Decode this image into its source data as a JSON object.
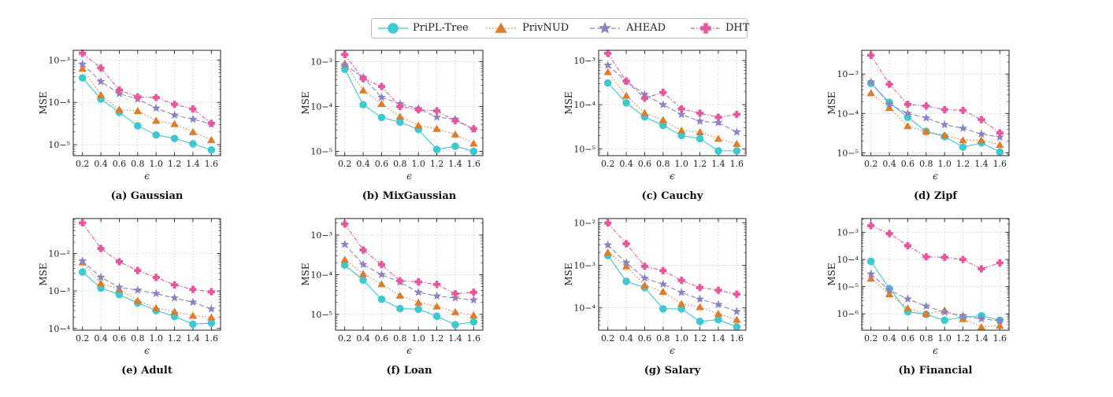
{
  "legend": [
    {
      "name": "PriPL-Tree",
      "color": "#3cc9cf",
      "marker": "circle",
      "dash": ""
    },
    {
      "name": "PrivNUD",
      "color": "#e07b2a",
      "marker": "triangle",
      "dash": "1.5,2.5"
    },
    {
      "name": "AHEAD",
      "color": "#8c84c2",
      "marker": "star",
      "dash": "6,3"
    },
    {
      "name": "DHT",
      "color": "#e8559a",
      "marker": "plus",
      "dash": "5,2,1.5,2"
    }
  ],
  "chart_data": [
    {
      "type": "line",
      "caption": "(a) Gaussian",
      "xlabel": "ϵ",
      "ylabel": "MSE",
      "yscale": "log",
      "x": [
        0.2,
        0.4,
        0.6,
        0.8,
        1.0,
        1.2,
        1.4,
        1.6
      ],
      "xticks": [
        "0.2",
        "0.4",
        "0.6",
        "0.8",
        "1.0",
        "1.2",
        "1.4",
        "1.6"
      ],
      "ylim": [
        5.5e-06,
        0.0017
      ],
      "yticks": [
        -5,
        -4,
        -3
      ],
      "series": [
        {
          "name": "PriPL-Tree",
          "values": [
            0.00038,
            0.00012,
            5.8e-05,
            2.8e-05,
            1.7e-05,
            1.4e-05,
            1.05e-05,
            7.5e-06
          ]
        },
        {
          "name": "PrivNUD",
          "values": [
            0.00063,
            0.00015,
            6.8e-05,
            6.3e-05,
            3.7e-05,
            3.1e-05,
            2e-05,
            1.3e-05
          ]
        },
        {
          "name": "AHEAD",
          "values": [
            0.0008,
            0.00031,
            0.00016,
            0.00012,
            7.3e-05,
            5e-05,
            4e-05,
            3.1e-05
          ]
        },
        {
          "name": "DHT",
          "values": [
            0.00145,
            0.00065,
            0.000195,
            0.000135,
            0.00013,
            9e-05,
            7e-05,
            3.2e-05
          ]
        }
      ]
    },
    {
      "type": "line",
      "caption": "(b) MixGaussian",
      "xlabel": "ϵ",
      "ylabel": "MSE",
      "yscale": "log",
      "x": [
        0.2,
        0.4,
        0.6,
        0.8,
        1.0,
        1.2,
        1.4,
        1.6
      ],
      "xticks": [
        "0.2",
        "0.4",
        "0.6",
        "0.8",
        "1.0",
        "1.2",
        "1.4",
        "1.6"
      ],
      "ylim": [
        8e-06,
        0.0018
      ],
      "yticks": [
        -5,
        -4,
        -3
      ],
      "series": [
        {
          "name": "PriPL-Tree",
          "values": [
            0.00068,
            0.00011,
            5.7e-05,
            4.5e-05,
            3.1e-05,
            1.1e-05,
            1.3e-05,
            1e-05
          ]
        },
        {
          "name": "PrivNUD",
          "values": [
            0.00092,
            0.00023,
            0.000115,
            6e-05,
            3.8e-05,
            3.2e-05,
            2.4e-05,
            1.5e-05
          ]
        },
        {
          "name": "AHEAD",
          "values": [
            0.00085,
            0.00045,
            0.00016,
            0.000115,
            9e-05,
            5.8e-05,
            5.2e-05,
            3.1e-05
          ]
        },
        {
          "name": "DHT",
          "values": [
            0.00145,
            0.00042,
            0.00028,
            0.0001,
            8.5e-05,
            8e-05,
            4.8e-05,
            3.2e-05
          ]
        }
      ]
    },
    {
      "type": "line",
      "caption": "(c) Cauchy",
      "xlabel": "ϵ",
      "ylabel": "MSE",
      "yscale": "log",
      "x": [
        0.2,
        0.4,
        0.6,
        0.8,
        1.0,
        1.2,
        1.4,
        1.6
      ],
      "xticks": [
        "0.2",
        "0.4",
        "0.6",
        "0.8",
        "1.0",
        "1.2",
        "1.4",
        "1.6"
      ],
      "ylim": [
        7e-06,
        0.0017
      ],
      "yticks": [
        -5,
        -4,
        -3
      ],
      "series": [
        {
          "name": "PriPL-Tree",
          "values": [
            0.00031,
            0.00011,
            5.3e-05,
            3.4e-05,
            2e-05,
            1.7e-05,
            9e-06,
            9e-06
          ]
        },
        {
          "name": "PrivNUD",
          "values": [
            0.00055,
            0.00016,
            6.5e-05,
            4.5e-05,
            2.6e-05,
            2.4e-05,
            1.7e-05,
            1.3e-05
          ]
        },
        {
          "name": "AHEAD",
          "values": [
            0.00078,
            0.00034,
            0.00017,
            0.0001,
            6e-05,
            4.2e-05,
            3.9e-05,
            2.4e-05
          ]
        },
        {
          "name": "DHT",
          "values": [
            0.00145,
            0.00034,
            0.00014,
            0.00019,
            8e-05,
            6.4e-05,
            5.2e-05,
            6e-05
          ]
        }
      ]
    },
    {
      "type": "line",
      "caption": "(d) Zipf",
      "xlabel": "ϵ",
      "ylabel": "MSE",
      "yscale": "log",
      "x": [
        0.2,
        0.4,
        0.6,
        0.8,
        1.0,
        1.2,
        1.4,
        1.6
      ],
      "xticks": [
        "0.2",
        "0.4",
        "0.6",
        "0.8",
        "1.0",
        "1.2",
        "1.4",
        "1.6"
      ],
      "ylim": [
        8.5e-06,
        0.004
      ],
      "yticks": [
        -5,
        -4,
        -3
      ],
      "series": [
        {
          "name": "PriPL-Tree",
          "values": [
            0.00058,
            0.00019,
            8e-05,
            3.5e-05,
            2.6e-05,
            1.4e-05,
            1.8e-05,
            1.05e-05
          ]
        },
        {
          "name": "PrivNUD",
          "values": [
            0.00033,
            0.00014,
            4.8e-05,
            3.5e-05,
            2.8e-05,
            2.1e-05,
            2.1e-05,
            1.6e-05
          ]
        },
        {
          "name": "AHEAD",
          "values": [
            0.00063,
            0.00017,
            0.0001,
            7.7e-05,
            5.2e-05,
            4.2e-05,
            3e-05,
            2.5e-05
          ]
        },
        {
          "name": "DHT",
          "values": [
            0.003,
            0.00055,
            0.00017,
            0.000155,
            0.000125,
            0.00012,
            7e-05,
            3.2e-05
          ]
        }
      ]
    },
    {
      "type": "line",
      "caption": "(e) Adult",
      "xlabel": "ϵ",
      "ylabel": "MSE",
      "yscale": "log",
      "x": [
        0.2,
        0.4,
        0.6,
        0.8,
        1.0,
        1.2,
        1.4,
        1.6
      ],
      "xticks": [
        "0.2",
        "0.4",
        "0.6",
        "0.8",
        "1.0",
        "1.2",
        "1.4",
        "1.6"
      ],
      "ylim": [
        9e-05,
        0.085
      ],
      "yticks": [
        -4,
        -3,
        -2
      ],
      "series": [
        {
          "name": "PriPL-Tree",
          "values": [
            0.0032,
            0.0012,
            0.0008,
            0.00048,
            0.0003,
            0.00021,
            0.00013,
            0.00014
          ]
        },
        {
          "name": "PrivNUD",
          "values": [
            0.0058,
            0.0016,
            0.0011,
            0.00055,
            0.00035,
            0.00028,
            0.00022,
            0.0002
          ]
        },
        {
          "name": "AHEAD",
          "values": [
            0.0063,
            0.0023,
            0.00125,
            0.00105,
            0.00085,
            0.00065,
            0.0005,
            0.00033
          ]
        },
        {
          "name": "DHT",
          "values": [
            0.065,
            0.0135,
            0.006,
            0.0035,
            0.0023,
            0.00145,
            0.0011,
            0.00095
          ]
        }
      ]
    },
    {
      "type": "line",
      "caption": "(f) Loan",
      "xlabel": "ϵ",
      "ylabel": "MSE",
      "yscale": "log",
      "x": [
        0.2,
        0.4,
        0.6,
        0.8,
        1.0,
        1.2,
        1.4,
        1.6
      ],
      "xticks": [
        "0.2",
        "0.4",
        "0.6",
        "0.8",
        "1.0",
        "1.2",
        "1.4",
        "1.6"
      ],
      "ylim": [
        4e-06,
        0.0026
      ],
      "yticks": [
        -5,
        -4,
        -3
      ],
      "series": [
        {
          "name": "PriPL-Tree",
          "values": [
            0.000175,
            7.3e-05,
            2.4e-05,
            1.4e-05,
            1.35e-05,
            9e-06,
            5.5e-06,
            6.5e-06
          ]
        },
        {
          "name": "PrivNUD",
          "values": [
            0.00024,
            0.000105,
            5.8e-05,
            3e-05,
            2e-05,
            1.6e-05,
            1.15e-05,
            9.5e-06
          ]
        },
        {
          "name": "AHEAD",
          "values": [
            0.00058,
            0.00018,
            0.0001,
            6.5e-05,
            3.6e-05,
            2.9e-05,
            2.6e-05,
            2.3e-05
          ]
        },
        {
          "name": "DHT",
          "values": [
            0.0019,
            0.00042,
            0.00018,
            7e-05,
            6.6e-05,
            5.7e-05,
            3.3e-05,
            3.6e-05
          ]
        }
      ]
    },
    {
      "type": "line",
      "caption": "(g) Salary",
      "xlabel": "ϵ",
      "ylabel": "MSE",
      "yscale": "log",
      "x": [
        0.2,
        0.4,
        0.6,
        0.8,
        1.0,
        1.2,
        1.4,
        1.6
      ],
      "xticks": [
        "0.2",
        "0.4",
        "0.6",
        "0.8",
        "1.0",
        "1.2",
        "1.4",
        "1.6"
      ],
      "ylim": [
        3e-05,
        0.0125
      ],
      "yticks": [
        -4,
        -3,
        -2
      ],
      "series": [
        {
          "name": "PriPL-Tree",
          "values": [
            0.0017,
            0.00042,
            0.0003,
            9.5e-05,
            9.5e-05,
            4.8e-05,
            5.3e-05,
            3.6e-05
          ]
        },
        {
          "name": "PrivNUD",
          "values": [
            0.002,
            0.00095,
            0.00034,
            0.00024,
            0.000125,
            0.000105,
            7.3e-05,
            5.3e-05
          ]
        },
        {
          "name": "AHEAD",
          "values": [
            0.003,
            0.00115,
            0.0005,
            0.00036,
            0.00023,
            0.00016,
            0.00012,
            8.2e-05
          ]
        },
        {
          "name": "DHT",
          "values": [
            0.0098,
            0.0032,
            0.00095,
            0.00075,
            0.00044,
            0.0003,
            0.00026,
            0.00021
          ]
        }
      ]
    },
    {
      "type": "line",
      "caption": "(h) Financial",
      "xlabel": "ϵ",
      "ylabel": "MSE",
      "yscale": "log",
      "x": [
        0.2,
        0.4,
        0.6,
        0.8,
        1.0,
        1.2,
        1.4,
        1.6
      ],
      "xticks": [
        "0.2",
        "0.4",
        "0.6",
        "0.8",
        "1.0",
        "1.2",
        "1.4",
        "1.6"
      ],
      "ylim": [
        2.5e-07,
        0.0032
      ],
      "yticks": [
        -6,
        -5,
        -4,
        -3
      ],
      "series": [
        {
          "name": "PriPL-Tree",
          "values": [
            8.5e-05,
            8.5e-06,
            1.2e-06,
            9.5e-07,
            5.8e-07,
            7.5e-07,
            8.5e-07,
            5.8e-07
          ]
        },
        {
          "name": "PrivNUD",
          "values": [
            2e-05,
            5.3e-06,
            1.6e-06,
            1e-06,
            1.35e-06,
            6.5e-07,
            3.3e-07,
            3.7e-07
          ]
        },
        {
          "name": "AHEAD",
          "values": [
            2.9e-05,
            7.5e-06,
            3.5e-06,
            1.9e-06,
            1.15e-06,
            8.5e-07,
            6.5e-07,
            5.5e-07
          ]
        },
        {
          "name": "DHT",
          "values": [
            0.00175,
            0.0009,
            0.00032,
            0.000125,
            0.00012,
            0.0001,
            4.5e-05,
            7.5e-05
          ]
        }
      ]
    }
  ]
}
